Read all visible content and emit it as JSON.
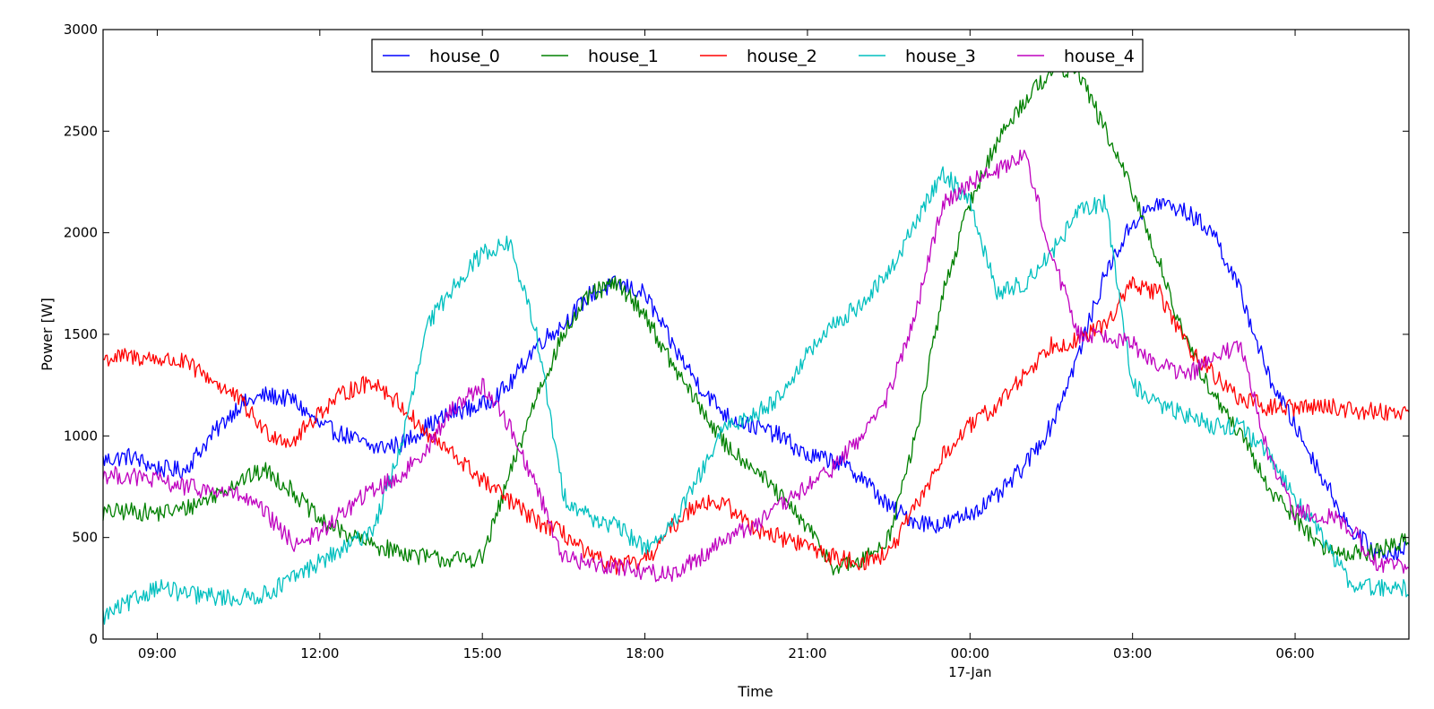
{
  "chart_data": {
    "type": "line",
    "xlabel": "Time",
    "ylabel": "Power [W]",
    "x_axis": {
      "range_hours": [
        -1,
        23.1
      ],
      "ticks": [
        {
          "label": "09:00",
          "hour": 0,
          "sublabel": ""
        },
        {
          "label": "12:00",
          "hour": 3,
          "sublabel": ""
        },
        {
          "label": "15:00",
          "hour": 6,
          "sublabel": ""
        },
        {
          "label": "18:00",
          "hour": 9,
          "sublabel": ""
        },
        {
          "label": "21:00",
          "hour": 12,
          "sublabel": ""
        },
        {
          "label": "00:00",
          "hour": 15,
          "sublabel": "17-Jan"
        },
        {
          "label": "03:00",
          "hour": 18,
          "sublabel": ""
        },
        {
          "label": "06:00",
          "hour": 21,
          "sublabel": ""
        }
      ]
    },
    "ylim": [
      0,
      3000
    ],
    "yticks": [
      0,
      500,
      1000,
      1500,
      2000,
      2500,
      3000
    ],
    "legend": {
      "placement": "top-center",
      "columns": 5
    },
    "series": [
      {
        "name": "house_0",
        "color": "#0000ff",
        "hours": [
          -1,
          -0.5,
          0,
          0.5,
          1,
          1.5,
          2,
          2.5,
          3,
          3.5,
          4,
          4.5,
          5,
          5.5,
          6,
          6.5,
          7,
          7.5,
          8,
          8.5,
          9,
          9.5,
          10,
          10.5,
          11,
          11.5,
          12,
          12.5,
          13,
          13.5,
          14,
          14.5,
          15,
          15.5,
          16,
          16.5,
          17,
          17.5,
          18,
          18.5,
          19,
          19.5,
          20,
          20.5,
          21,
          21.5,
          22,
          22.5,
          23,
          23.1
        ],
        "values": [
          880,
          900,
          840,
          830,
          1000,
          1150,
          1200,
          1180,
          1050,
          1000,
          940,
          960,
          1050,
          1120,
          1150,
          1250,
          1450,
          1550,
          1700,
          1750,
          1700,
          1450,
          1250,
          1100,
          1050,
          1000,
          900,
          880,
          800,
          650,
          580,
          560,
          620,
          700,
          850,
          1050,
          1400,
          1800,
          2050,
          2150,
          2100,
          2000,
          1700,
          1300,
          1050,
          800,
          550,
          420,
          440,
          450
        ]
      },
      {
        "name": "house_1",
        "color": "#008000",
        "hours": [
          -1,
          -0.5,
          0,
          0.5,
          1,
          1.5,
          2,
          2.5,
          3,
          3.5,
          4,
          4.5,
          5,
          5.5,
          6,
          6.5,
          7,
          7.5,
          8,
          8.5,
          9,
          9.5,
          10,
          10.5,
          11,
          11.5,
          12,
          12.5,
          13,
          13.5,
          14,
          14.5,
          15,
          15.5,
          16,
          16.5,
          17,
          17.5,
          18,
          18.5,
          19,
          19.5,
          20,
          20.5,
          21,
          21.5,
          22,
          22.5,
          23,
          23.1
        ],
        "values": [
          620,
          630,
          620,
          640,
          700,
          780,
          830,
          730,
          580,
          520,
          460,
          430,
          400,
          390,
          400,
          800,
          1200,
          1500,
          1700,
          1750,
          1600,
          1350,
          1150,
          950,
          850,
          700,
          550,
          350,
          380,
          500,
          1000,
          1700,
          2150,
          2450,
          2650,
          2800,
          2800,
          2500,
          2200,
          1850,
          1450,
          1200,
          1000,
          750,
          600,
          450,
          420,
          430,
          480,
          500
        ]
      },
      {
        "name": "house_2",
        "color": "#ff0000",
        "hours": [
          -1,
          -0.5,
          0,
          0.5,
          1,
          1.5,
          2,
          2.5,
          3,
          3.5,
          4,
          4.5,
          5,
          5.5,
          6,
          6.5,
          7,
          7.5,
          8,
          8.5,
          9,
          9.5,
          10,
          10.5,
          11,
          11.5,
          12,
          12.5,
          13,
          13.5,
          14,
          14.5,
          15,
          15.5,
          16,
          16.5,
          17,
          17.5,
          18,
          18.5,
          19,
          19.5,
          20,
          20.5,
          21,
          21.5,
          22,
          22.5,
          23,
          23.1
        ],
        "values": [
          1380,
          1390,
          1380,
          1360,
          1280,
          1180,
          1020,
          970,
          1120,
          1220,
          1270,
          1150,
          1000,
          900,
          780,
          680,
          580,
          520,
          400,
          360,
          380,
          550,
          680,
          660,
          550,
          500,
          460,
          400,
          380,
          420,
          650,
          900,
          1050,
          1150,
          1300,
          1450,
          1470,
          1550,
          1750,
          1700,
          1450,
          1300,
          1180,
          1140,
          1140,
          1150,
          1130,
          1120,
          1120,
          1100
        ]
      },
      {
        "name": "house_3",
        "color": "#00bfbf",
        "hours": [
          -1,
          -0.5,
          0,
          0.5,
          1,
          1.5,
          2,
          2.5,
          3,
          3.5,
          4,
          4.5,
          5,
          5.5,
          6,
          6.5,
          7,
          7.5,
          8,
          8.5,
          9,
          9.5,
          10,
          10.5,
          11,
          11.5,
          12,
          12.5,
          13,
          13.5,
          14,
          14.5,
          15,
          15.5,
          16,
          16.5,
          17,
          17.5,
          18,
          18.5,
          19,
          19.5,
          20,
          20.5,
          21,
          21.5,
          22,
          22.5,
          23,
          23.1
        ],
        "values": [
          110,
          180,
          260,
          220,
          210,
          200,
          220,
          300,
          380,
          450,
          550,
          950,
          1550,
          1750,
          1900,
          1950,
          1500,
          700,
          600,
          550,
          450,
          550,
          800,
          1050,
          1100,
          1200,
          1400,
          1550,
          1650,
          1800,
          2050,
          2300,
          2150,
          1700,
          1750,
          1900,
          2100,
          2150,
          1250,
          1150,
          1100,
          1050,
          1050,
          900,
          700,
          500,
          280,
          250,
          250,
          240
        ]
      },
      {
        "name": "house_4",
        "color": "#bf00bf",
        "hours": [
          -1,
          -0.5,
          0,
          0.5,
          1,
          1.5,
          2,
          2.5,
          3,
          3.5,
          4,
          4.5,
          5,
          5.5,
          6,
          6.5,
          7,
          7.5,
          8,
          8.5,
          9,
          9.5,
          10,
          10.5,
          11,
          11.5,
          12,
          12.5,
          13,
          13.5,
          14,
          14.5,
          15,
          15.5,
          16,
          16.5,
          17,
          17.5,
          18,
          18.5,
          19,
          19.5,
          20,
          20.5,
          21,
          21.5,
          22,
          22.5,
          23,
          23.1
        ],
        "values": [
          810,
          800,
          780,
          750,
          730,
          710,
          620,
          470,
          520,
          640,
          740,
          800,
          950,
          1150,
          1250,
          1050,
          750,
          400,
          370,
          360,
          330,
          320,
          400,
          500,
          560,
          650,
          750,
          850,
          1000,
          1200,
          1600,
          2150,
          2250,
          2300,
          2400,
          1900,
          1500,
          1500,
          1450,
          1350,
          1300,
          1380,
          1450,
          900,
          620,
          620,
          550,
          380,
          350,
          330
        ]
      }
    ]
  }
}
